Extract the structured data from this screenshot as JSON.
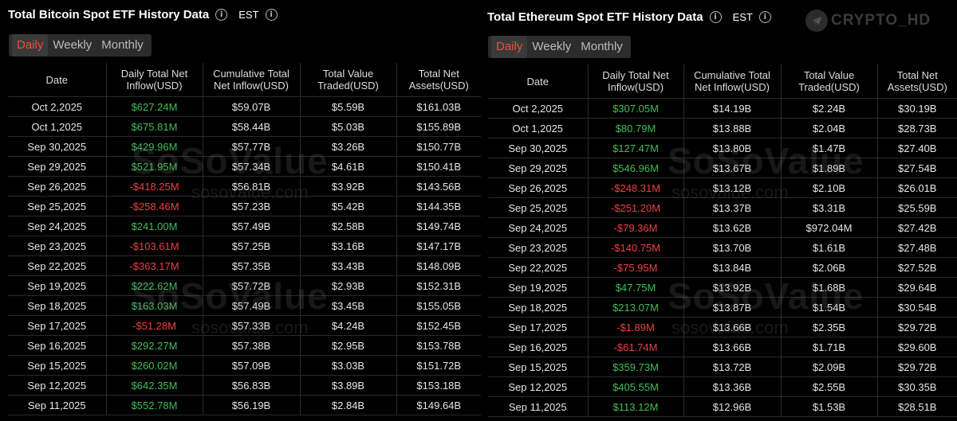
{
  "btc": {
    "title": "Total Bitcoin Spot ETF History Data",
    "timezone": "EST",
    "tabs": [
      "Daily",
      "Weekly",
      "Monthly"
    ],
    "columns": [
      "Date",
      "Daily Total Net Inflow(USD)",
      "Cumulative Total Net Inflow(USD)",
      "Total Value Traded(USD)",
      "Total Net Assets(USD)"
    ],
    "rows": [
      [
        "Oct 2,2025",
        "$627.24M",
        "$59.07B",
        "$5.59B",
        "$161.03B"
      ],
      [
        "Oct 1,2025",
        "$675.81M",
        "$58.44B",
        "$5.03B",
        "$155.89B"
      ],
      [
        "Sep 30,2025",
        "$429.96M",
        "$57.77B",
        "$3.26B",
        "$150.77B"
      ],
      [
        "Sep 29,2025",
        "$521.95M",
        "$57.34B",
        "$4.61B",
        "$150.41B"
      ],
      [
        "Sep 26,2025",
        "-$418.25M",
        "$56.81B",
        "$3.92B",
        "$143.56B"
      ],
      [
        "Sep 25,2025",
        "-$258.46M",
        "$57.23B",
        "$5.42B",
        "$144.35B"
      ],
      [
        "Sep 24,2025",
        "$241.00M",
        "$57.49B",
        "$2.58B",
        "$149.74B"
      ],
      [
        "Sep 23,2025",
        "-$103.61M",
        "$57.25B",
        "$3.16B",
        "$147.17B"
      ],
      [
        "Sep 22,2025",
        "-$363.17M",
        "$57.35B",
        "$3.43B",
        "$148.09B"
      ],
      [
        "Sep 19,2025",
        "$222.62M",
        "$57.72B",
        "$2.93B",
        "$152.31B"
      ],
      [
        "Sep 18,2025",
        "$163.03M",
        "$57.49B",
        "$3.45B",
        "$155.05B"
      ],
      [
        "Sep 17,2025",
        "-$51.28M",
        "$57.33B",
        "$4.24B",
        "$152.45B"
      ],
      [
        "Sep 16,2025",
        "$292.27M",
        "$57.38B",
        "$2.95B",
        "$153.78B"
      ],
      [
        "Sep 15,2025",
        "$260.02M",
        "$57.09B",
        "$3.03B",
        "$151.72B"
      ],
      [
        "Sep 12,2025",
        "$642.35M",
        "$56.83B",
        "$3.89B",
        "$153.18B"
      ],
      [
        "Sep 11,2025",
        "$552.78M",
        "$56.19B",
        "$2.84B",
        "$149.64B"
      ]
    ]
  },
  "eth": {
    "title": "Total Ethereum Spot ETF History Data",
    "timezone": "EST",
    "tabs": [
      "Daily",
      "Weekly",
      "Monthly"
    ],
    "columns": [
      "Date",
      "Daily Total Net Inflow(USD)",
      "Cumulative Total Net Inflow(USD)",
      "Total Value Traded(USD)",
      "Total Net Assets(USD)"
    ],
    "rows": [
      [
        "Oct 2,2025",
        "$307.05M",
        "$14.19B",
        "$2.24B",
        "$30.19B"
      ],
      [
        "Oct 1,2025",
        "$80.79M",
        "$13.88B",
        "$2.04B",
        "$28.73B"
      ],
      [
        "Sep 30,2025",
        "$127.47M",
        "$13.80B",
        "$1.47B",
        "$27.40B"
      ],
      [
        "Sep 29,2025",
        "$546.96M",
        "$13.67B",
        "$1.89B",
        "$27.54B"
      ],
      [
        "Sep 26,2025",
        "-$248.31M",
        "$13.12B",
        "$2.10B",
        "$26.01B"
      ],
      [
        "Sep 25,2025",
        "-$251.20M",
        "$13.37B",
        "$3.31B",
        "$25.59B"
      ],
      [
        "Sep 24,2025",
        "-$79.36M",
        "$13.62B",
        "$972.04M",
        "$27.42B"
      ],
      [
        "Sep 23,2025",
        "-$140.75M",
        "$13.70B",
        "$1.61B",
        "$27.48B"
      ],
      [
        "Sep 22,2025",
        "-$75.95M",
        "$13.84B",
        "$2.06B",
        "$27.52B"
      ],
      [
        "Sep 19,2025",
        "$47.75M",
        "$13.92B",
        "$1.68B",
        "$29.64B"
      ],
      [
        "Sep 18,2025",
        "$213.07M",
        "$13.87B",
        "$1.54B",
        "$30.54B"
      ],
      [
        "Sep 17,2025",
        "-$1.89M",
        "$13.66B",
        "$2.35B",
        "$29.72B"
      ],
      [
        "Sep 16,2025",
        "-$61.74M",
        "$13.66B",
        "$1.71B",
        "$29.60B"
      ],
      [
        "Sep 15,2025",
        "$359.73M",
        "$13.72B",
        "$2.09B",
        "$29.72B"
      ],
      [
        "Sep 12,2025",
        "$405.55M",
        "$13.36B",
        "$2.55B",
        "$30.35B"
      ],
      [
        "Sep 11,2025",
        "$113.12M",
        "$12.96B",
        "$1.53B",
        "$28.51B"
      ]
    ]
  },
  "watermark": {
    "brand": "SoSoValue",
    "site": "sosovalue.com"
  },
  "logo": {
    "text": "CRYPTO_HD",
    "icon": "telegram-icon"
  },
  "colors": {
    "positive": "#3fbf57",
    "negative": "#ee4040",
    "active_tab": "#ee4e3a",
    "background": "#000000"
  }
}
